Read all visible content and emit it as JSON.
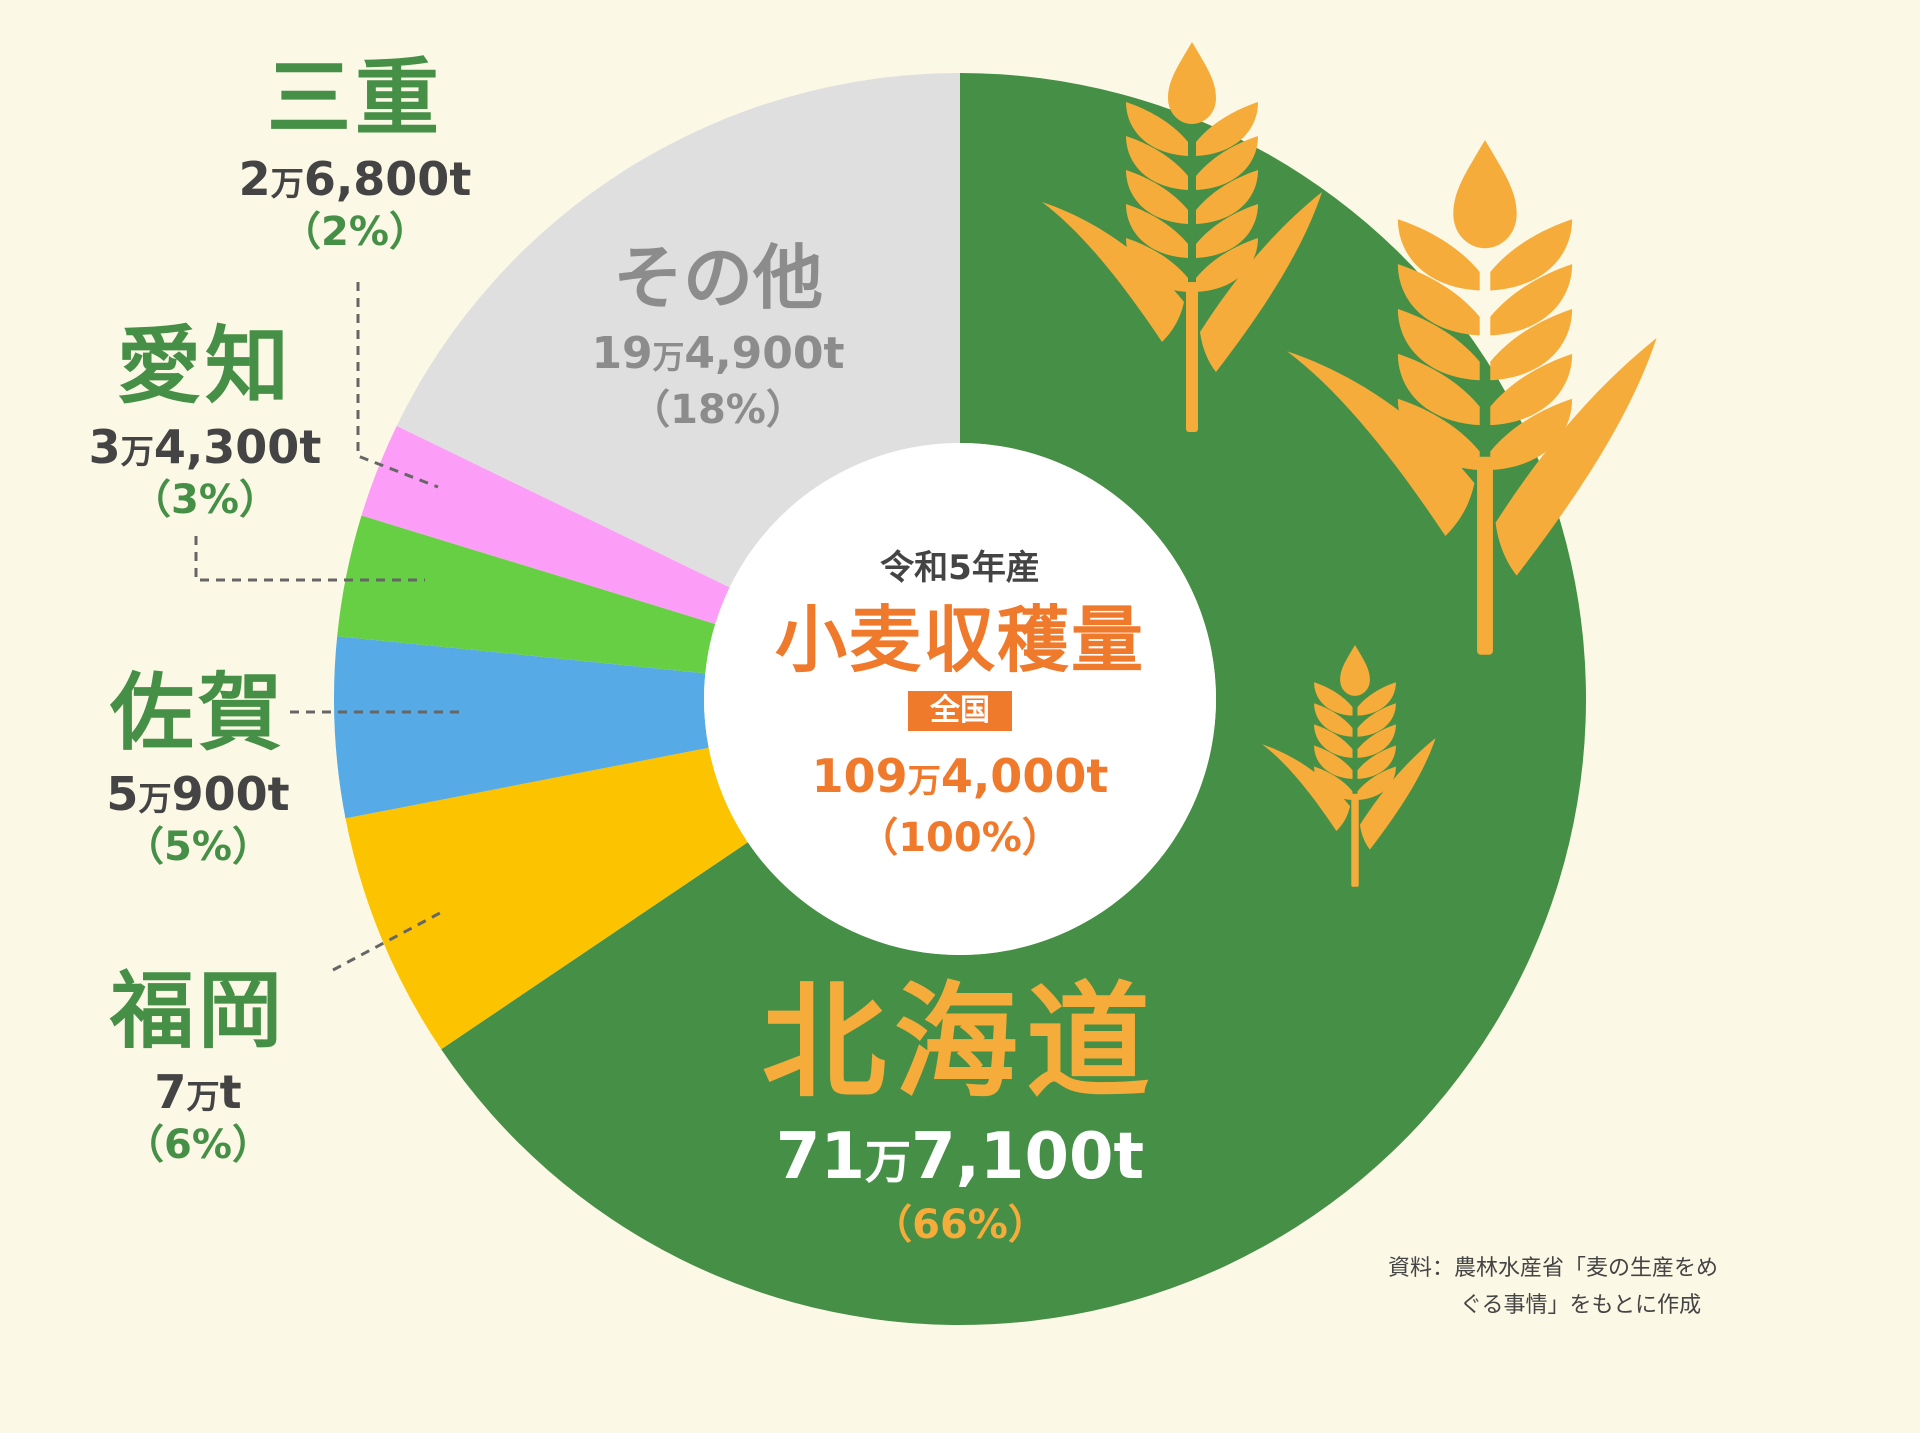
{
  "chart_data": {
    "type": "pie",
    "title": "小麦収穫量",
    "subtitle": "令和5年産",
    "badge": "全国",
    "unit": "t",
    "total": {
      "amount": 1094000,
      "amount_label": "109万4,000t",
      "percent_label": "（100%）"
    },
    "segments": [
      {
        "name": "北海道",
        "value": 717100,
        "percent": 66,
        "amount_label": "71万7,100t",
        "percent_label": "（66%）",
        "color": "#468f46"
      },
      {
        "name": "福岡",
        "value": 70000,
        "percent": 6,
        "amount_label": "7万t",
        "percent_label": "（6%）",
        "color": "#fcc400"
      },
      {
        "name": "佐賀",
        "value": 50900,
        "percent": 5,
        "amount_label": "5万900t",
        "percent_label": "（5%）",
        "color": "#56aae6"
      },
      {
        "name": "愛知",
        "value": 34300,
        "percent": 3,
        "amount_label": "3万4,300t",
        "percent_label": "（3%）",
        "color": "#66cf44"
      },
      {
        "name": "三重",
        "value": 26800,
        "percent": 2,
        "amount_label": "2万6,800t",
        "percent_label": "（2%）",
        "color": "#fc9ef7"
      },
      {
        "name": "その他",
        "value": 194900,
        "percent": 18,
        "amount_label": "19万4,900t",
        "percent_label": "（18%）",
        "color": "#dfdfdf"
      }
    ]
  },
  "source": {
    "line1": "資料：農林水産省「麦の生産をめ",
    "line2": "ぐる事情」をもとに作成"
  },
  "colors": {
    "background": "#fcf8e6",
    "wheat": "#f6ac3a",
    "accent": "#f07a2c",
    "leader": "#666666"
  },
  "icons": [
    "wheat-icon-medium",
    "wheat-icon-large",
    "wheat-icon-small"
  ]
}
